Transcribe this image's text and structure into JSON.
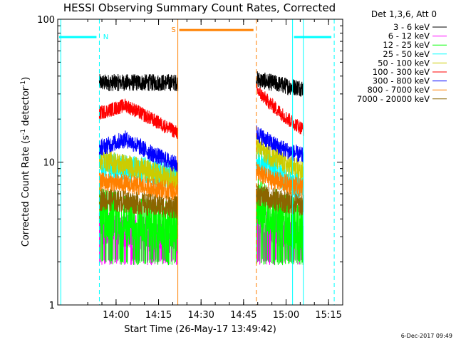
{
  "chart_data": {
    "type": "line",
    "title": "HESSI Observing Summary Count Rates, Corrected",
    "xlabel": "Start Time (26-May-17 13:49:42)",
    "ylabel_main": "Corrected Count Rate (s",
    "ylabel_sup1": "-1",
    "ylabel_mid": " detector",
    "ylabel_sup2": "-1",
    "ylabel_end": ")",
    "yscale": "log",
    "ylim": [
      1,
      100
    ],
    "xlim_minutes": [
      -10.3,
      90.3
    ],
    "x_ticks": [
      {
        "t": 10.3,
        "label": "14:00"
      },
      {
        "t": 25.3,
        "label": "14:15"
      },
      {
        "t": 40.3,
        "label": "14:30"
      },
      {
        "t": 55.3,
        "label": "14:45"
      },
      {
        "t": 70.3,
        "label": "15:00"
      },
      {
        "t": 85.3,
        "label": "15:15"
      }
    ],
    "y_ticks": [
      {
        "v": 1,
        "label": "1"
      },
      {
        "v": 10,
        "label": "10"
      },
      {
        "v": 100,
        "label": "100"
      }
    ],
    "legend_title": "Det 1,3,6, Att 0",
    "legend_position": "top-right, outside plot",
    "series": [
      {
        "name": "3 - 6 keV",
        "color": "#000000",
        "seg1": [
          36,
          36,
          36,
          36
        ],
        "seg2": [
          38,
          36,
          34,
          33
        ],
        "noise": 0.06,
        "low": 0
      },
      {
        "name": "6 - 12 keV",
        "color": "#ff00ff",
        "seg1": [
          3.5,
          3.3,
          3.1,
          3.0
        ],
        "seg2": [
          4.0,
          3.5,
          3.2,
          3.0
        ],
        "noise": 0.12,
        "low": 2.0
      },
      {
        "name": "12 - 25 keV",
        "color": "#00ff00",
        "seg1": [
          4.5,
          4.0,
          3.7,
          3.5
        ],
        "seg2": [
          5.5,
          4.5,
          3.9,
          3.5
        ],
        "noise": 0.18,
        "low": 2.0
      },
      {
        "name": "25 - 50 keV",
        "color": "#00ffff",
        "seg1": [
          10,
          9,
          8.5,
          8
        ],
        "seg2": [
          10.5,
          9,
          7.5,
          6.5
        ],
        "noise": 0.1,
        "low": 0
      },
      {
        "name": "50 - 100 keV",
        "color": "#cccc00",
        "seg1": [
          10.5,
          9.5,
          8.5,
          7.5
        ],
        "seg2": [
          13,
          11,
          9.5,
          8.5
        ],
        "noise": 0.08,
        "low": 0
      },
      {
        "name": "100 - 300 keV",
        "color": "#ff0000",
        "seg1": [
          22,
          25,
          20,
          16
        ],
        "seg2": [
          32,
          25,
          20,
          17
        ],
        "noise": 0.05,
        "low": 0
      },
      {
        "name": "300 - 800 keV",
        "color": "#0000ff",
        "seg1": [
          12.5,
          14.5,
          11.5,
          9.5
        ],
        "seg2": [
          16,
          13.5,
          12,
          11
        ],
        "noise": 0.06,
        "low": 0
      },
      {
        "name": "800 - 7000 keV",
        "color": "#ff8000",
        "seg1": [
          7.3,
          7.0,
          6.6,
          6.2
        ],
        "seg2": [
          8.5,
          7.5,
          7.0,
          6.5
        ],
        "noise": 0.07,
        "low": 0
      },
      {
        "name": "7000 - 20000 keV",
        "color": "#8b6500",
        "seg1": [
          5.5,
          5.3,
          5.0,
          4.8
        ],
        "seg2": [
          6,
          5.5,
          5.2,
          5.0
        ],
        "noise": 0.08,
        "low": 0
      }
    ],
    "segments": [
      {
        "start": 4.4,
        "end": 32.1
      },
      {
        "start": 59.8,
        "end": 76.4
      }
    ],
    "flags": [
      {
        "label": "N",
        "color": "#00ffff",
        "start": -10.3,
        "end": 4.4,
        "level": 75
      },
      {
        "label": "S",
        "color": "#ff8000",
        "start": 32.1,
        "end": 59.8,
        "level": 84
      },
      {
        "label": "",
        "color": "#00ffff",
        "start": 72.6,
        "end": 87.3,
        "level": 75
      }
    ],
    "vlines": [
      {
        "t": -9.2,
        "color": "#00ffff",
        "dash": false
      },
      {
        "t": 4.4,
        "color": "#00ffff",
        "dash": true
      },
      {
        "t": 32.1,
        "color": "#ff8000",
        "dash": false
      },
      {
        "t": 59.8,
        "color": "#ff8000",
        "dash": true
      },
      {
        "t": 72.6,
        "color": "#00ffff",
        "dash": false
      },
      {
        "t": 76.4,
        "color": "#00ffff",
        "dash": false
      },
      {
        "t": 87.3,
        "color": "#00ffff",
        "dash": true
      }
    ],
    "timestamp": "6-Dec-2017 09:49"
  }
}
